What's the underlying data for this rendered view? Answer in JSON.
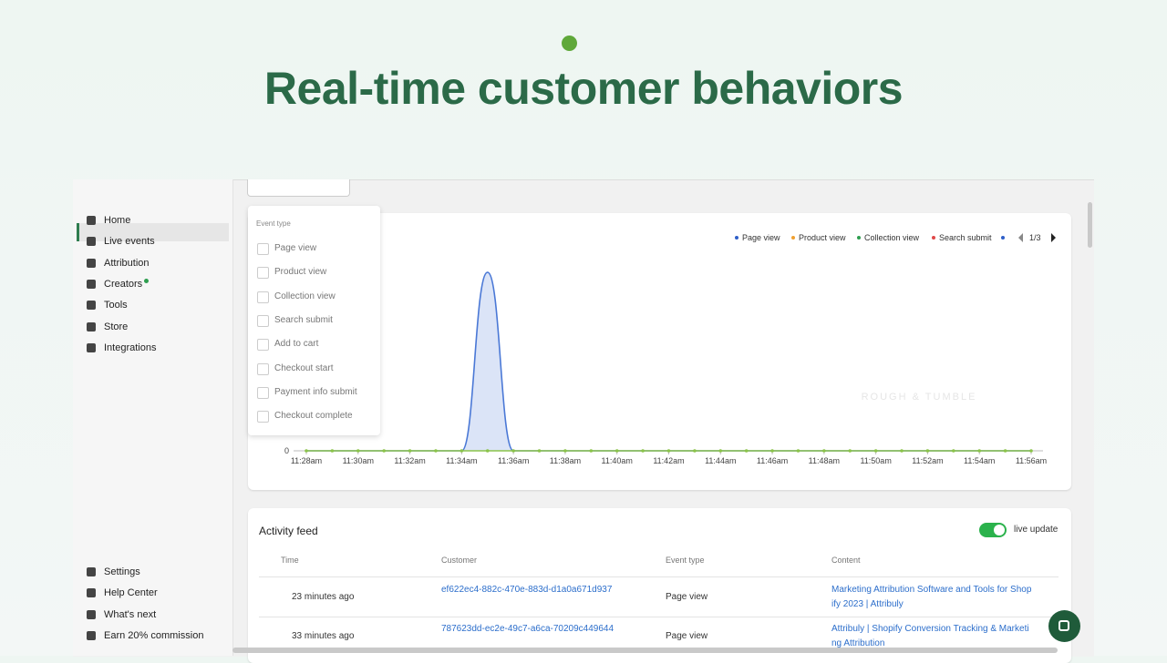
{
  "hero": {
    "title": "Real-time customer behaviors"
  },
  "sidebar": {
    "nav": [
      "Home",
      "Live events",
      "Attribution",
      "Creators",
      "Tools",
      "Store",
      "Integrations"
    ],
    "footer": [
      "Settings",
      "Help Center",
      "What's next",
      "Earn 20% commission"
    ]
  },
  "filter": {
    "title": "Event type",
    "options": [
      "Page view",
      "Product view",
      "Collection view",
      "Search submit",
      "Add to cart",
      "Checkout start",
      "Payment info submit",
      "Checkout complete"
    ]
  },
  "chart_data": {
    "type": "area",
    "categories": [
      "11:28am",
      null,
      "11:30am",
      null,
      "11:32am",
      null,
      "11:34am",
      null,
      "11:36am",
      null,
      "11:38am",
      null,
      "11:40am",
      null,
      "11:42am",
      null,
      "11:44am",
      null,
      "11:46am",
      null,
      "11:48am",
      null,
      "11:50am",
      null,
      "11:52am",
      null,
      "11:54am",
      null,
      "11:56am"
    ],
    "series": [
      {
        "color": "#4a78d6",
        "values": [
          0,
          0,
          0,
          0,
          0,
          0,
          0,
          1,
          0,
          0,
          0,
          0,
          0,
          0,
          0,
          0,
          0,
          0,
          0,
          0,
          0,
          0,
          0,
          0,
          0,
          0,
          0,
          0,
          0
        ]
      },
      {
        "color": "#8bc34a",
        "values": [
          0,
          0,
          0,
          0,
          0,
          0,
          0,
          0,
          0,
          0,
          0,
          0,
          0,
          0,
          0,
          0,
          0,
          0,
          0,
          0,
          0,
          0,
          0,
          0,
          0,
          0,
          0,
          0,
          0
        ]
      }
    ],
    "legend": [
      {
        "name": "Page view",
        "color": "#2f5fc8"
      },
      {
        "name": "Product view",
        "color": "#f0a030"
      },
      {
        "name": "Collection view",
        "color": "#2e9e4f"
      },
      {
        "name": "Search submit",
        "color": "#e04848"
      }
    ],
    "ylim": [
      0,
      1
    ],
    "yticks": [
      0
    ],
    "page_label": "1/3",
    "watermark": "ROUGH & TUMBLE"
  },
  "activity": {
    "title": "Activity feed",
    "toggle_label": "live update",
    "columns": [
      "Time",
      "Customer",
      "Event type",
      "Content"
    ],
    "rows": [
      [
        "23 minutes ago",
        "ef622ec4-882c-470e-883d-d1a0a671d937",
        "Page view",
        "Marketing Attribution Software and Tools for Shopify 2023 | Attribuly"
      ],
      [
        "33 minutes ago",
        "787623dd-ec2e-49c7-a6ca-70209c449644",
        "Page view",
        "Attribuly | Shopify Conversion Tracking & Marketing Attribution"
      ]
    ]
  }
}
